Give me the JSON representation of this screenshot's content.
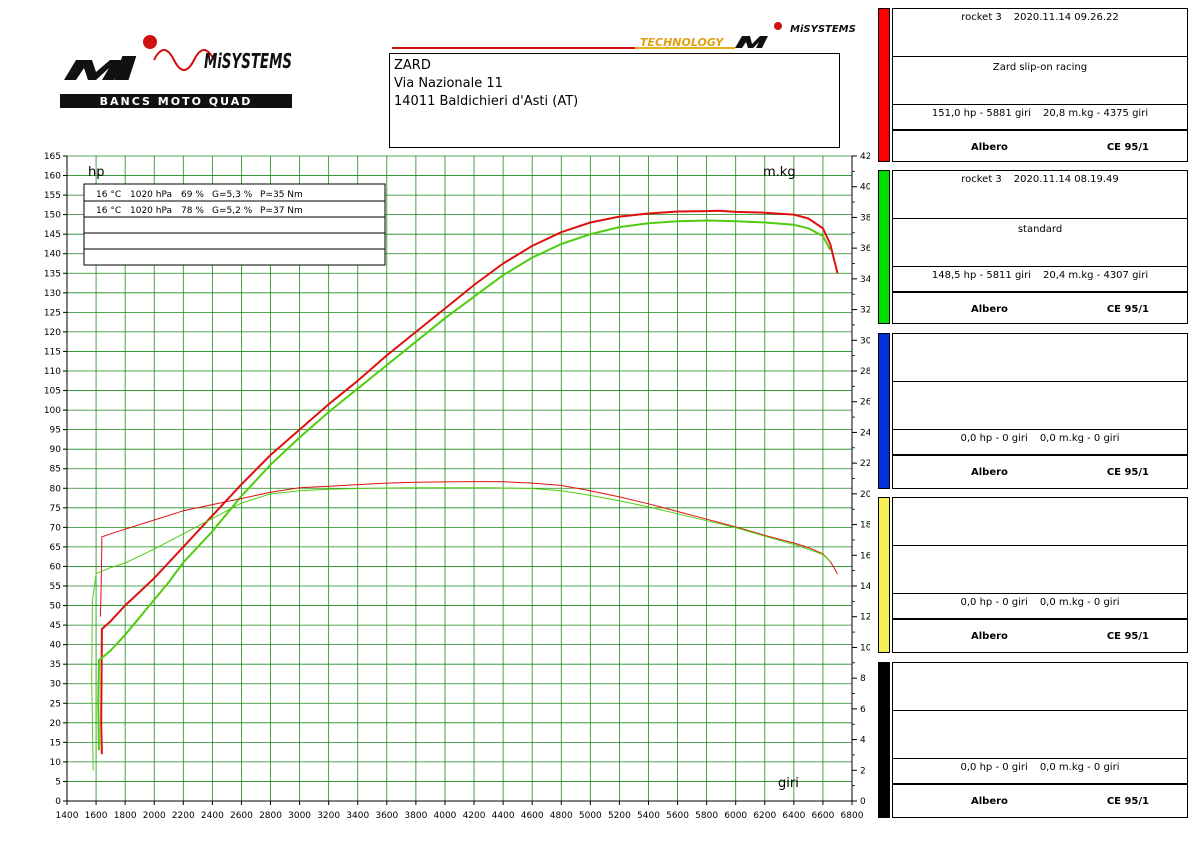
{
  "logo": {
    "brand": "MiSYSTEMS",
    "tagline": "BANCS MOTO QUAD"
  },
  "banner": {
    "text": "TECHNOLOGY",
    "brand": "MiSYSTEMS"
  },
  "address": {
    "line1": "ZARD",
    "line2": "Via Nazionale 11",
    "line3": "14011 Baldichieri d'Asti (AT)"
  },
  "conditions": {
    "rows": [
      {
        "temp": "16 °C",
        "pressure": "1020 hPa",
        "humidity": "69 %",
        "g": "G=5,3 %",
        "p": "P=35 Nm"
      },
      {
        "temp": "16 °C",
        "pressure": "1020 hPa",
        "humidity": "78 %",
        "g": "G=5,2 %",
        "p": "P=37 Nm"
      }
    ]
  },
  "panels": [
    {
      "color": "#ff0000",
      "name": "rocket 3",
      "date": "2020.11.14 09.26.22",
      "desc": "Zard slip-on racing",
      "peak_hp": "151,0 hp - 5881 giri",
      "peak_tq": "20,8 m.kg - 4375 giri",
      "left": "Albero",
      "right": "CE 95/1"
    },
    {
      "color": "#00e000",
      "name": "rocket 3",
      "date": "2020.11.14 08.19.49",
      "desc": "standard",
      "peak_hp": "148,5 hp - 5811 giri",
      "peak_tq": "20,4 m.kg - 4307 giri",
      "left": "Albero",
      "right": "CE 95/1"
    },
    {
      "color": "#0033dd",
      "name": "",
      "date": "",
      "desc": "",
      "peak_hp": "0,0 hp - 0 giri",
      "peak_tq": "0,0 m.kg - 0 giri",
      "left": "Albero",
      "right": "CE 95/1"
    },
    {
      "color": "#f5ee55",
      "name": "",
      "date": "",
      "desc": "",
      "peak_hp": "0,0 hp - 0 giri",
      "peak_tq": "0,0 m.kg - 0 giri",
      "left": "Albero",
      "right": "CE 95/1"
    },
    {
      "color": "#000000",
      "name": "",
      "date": "",
      "desc": "",
      "peak_hp": "0,0 hp - 0 giri",
      "peak_tq": "0,0 m.kg - 0 giri",
      "left": "Albero",
      "right": "CE 95/1"
    }
  ],
  "chart_data": {
    "type": "line",
    "y_left_label": "hp",
    "y_right_label": "m.kg",
    "x_label": "giri",
    "xlim": [
      1400,
      6800
    ],
    "x_step": 200,
    "ylim_left": [
      0,
      165
    ],
    "y_left_step": 5,
    "ylim_right": [
      0,
      42
    ],
    "y_right_step": 2,
    "grid": true,
    "grid_color": "#1a8a1a",
    "series": [
      {
        "name": "Zard slip-on racing",
        "kind": "power",
        "axis": "left",
        "color": "#e01010",
        "x": [
          1640,
          1635,
          1640,
          1700,
          1800,
          1900,
          2000,
          2100,
          2200,
          2400,
          2600,
          2800,
          3000,
          3200,
          3400,
          3600,
          3800,
          4000,
          4200,
          4400,
          4600,
          4800,
          5000,
          5200,
          5400,
          5600,
          5800,
          5881,
          6000,
          6200,
          6400,
          6500,
          6600,
          6650,
          6700
        ],
        "y": [
          12,
          20,
          44,
          46,
          50,
          53.5,
          57,
          61,
          65,
          73,
          81,
          88.5,
          95,
          101.5,
          107.5,
          114,
          120,
          126,
          132,
          137.5,
          142,
          145.5,
          148,
          149.5,
          150.3,
          150.8,
          150.9,
          151.0,
          150.7,
          150.5,
          150.0,
          149.0,
          146.5,
          142.5,
          135
        ]
      },
      {
        "name": "standard",
        "kind": "power",
        "axis": "left",
        "color": "#50cc10",
        "x": [
          1620,
          1615,
          1620,
          1700,
          1800,
          1900,
          2000,
          2100,
          2200,
          2400,
          2600,
          2800,
          3000,
          3200,
          3400,
          3600,
          3800,
          4000,
          4200,
          4400,
          4600,
          4800,
          5000,
          5200,
          5400,
          5600,
          5811,
          6000,
          6200,
          6400,
          6500,
          6600,
          6650
        ],
        "y": [
          13,
          25,
          36,
          38.5,
          42.5,
          47,
          51.5,
          56,
          61,
          69,
          78,
          86,
          93,
          99.5,
          105.5,
          111.5,
          117.5,
          123.5,
          129,
          134.5,
          139,
          142.5,
          145,
          146.8,
          147.8,
          148.3,
          148.5,
          148.3,
          148.0,
          147.4,
          146.5,
          144.5,
          141
        ]
      },
      {
        "name": "Zard slip-on racing",
        "kind": "torque",
        "axis": "right",
        "color": "#e01010",
        "x": [
          1630,
          1635,
          1640,
          1700,
          1800,
          2000,
          2200,
          2400,
          2600,
          2800,
          3000,
          3200,
          3400,
          3600,
          3800,
          4000,
          4200,
          4375,
          4600,
          4800,
          5000,
          5200,
          5400,
          5600,
          5800,
          6000,
          6200,
          6400,
          6500,
          6600,
          6650,
          6700
        ],
        "y": [
          12,
          14,
          17.2,
          17.4,
          17.7,
          18.3,
          18.9,
          19.3,
          19.7,
          20.1,
          20.4,
          20.5,
          20.6,
          20.7,
          20.75,
          20.78,
          20.8,
          20.8,
          20.7,
          20.55,
          20.2,
          19.8,
          19.35,
          18.85,
          18.35,
          17.85,
          17.3,
          16.8,
          16.5,
          16.1,
          15.6,
          14.8
        ]
      },
      {
        "name": "standard",
        "kind": "torque",
        "axis": "right",
        "color": "#50cc10",
        "x": [
          1580,
          1570,
          1575,
          1600,
          1700,
          1800,
          2000,
          2200,
          2400,
          2600,
          2800,
          3000,
          3200,
          3400,
          3600,
          3800,
          4000,
          4307,
          4600,
          4800,
          5000,
          5200,
          5400,
          5600,
          5800,
          6000,
          6200,
          6400,
          6500,
          6600,
          6650
        ],
        "y": [
          2,
          8,
          13,
          14.8,
          15.2,
          15.5,
          16.4,
          17.4,
          18.4,
          19.4,
          20.0,
          20.2,
          20.3,
          20.35,
          20.38,
          20.4,
          20.4,
          20.4,
          20.35,
          20.2,
          19.9,
          19.55,
          19.15,
          18.7,
          18.25,
          17.8,
          17.25,
          16.7,
          16.4,
          16.05,
          15.6
        ]
      }
    ]
  }
}
